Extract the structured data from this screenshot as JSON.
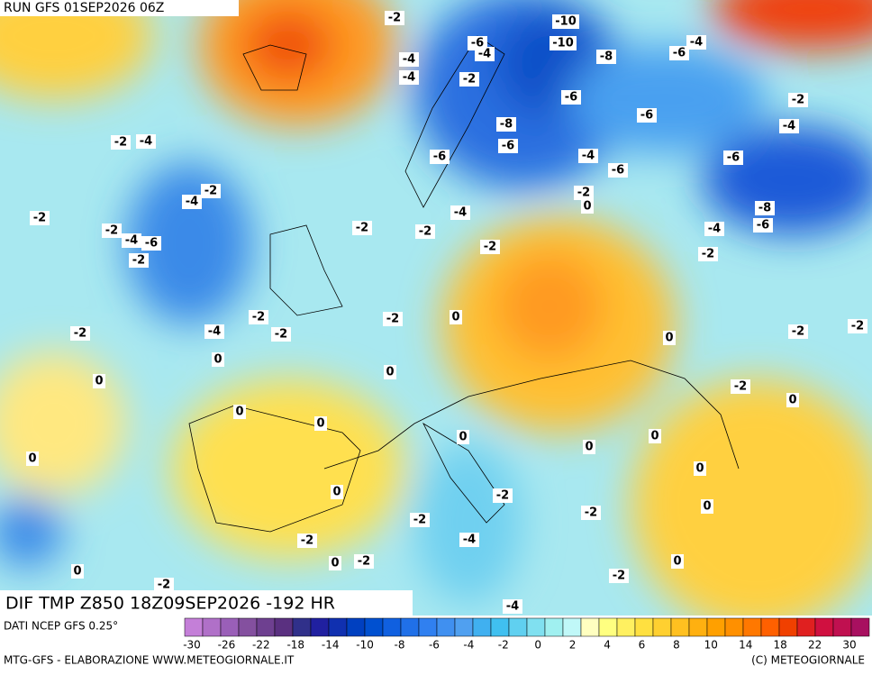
{
  "header": {
    "run": "RUN GFS 01SEP2026 06Z"
  },
  "map": {
    "title": "DIF TMP Z850 18Z09SEP2026 -192 HR",
    "contour_labels": [
      "-2",
      "-10",
      "-10",
      "-6",
      "-4",
      "-4",
      "-6",
      "-8",
      "-4",
      "-4",
      "-2",
      "-6",
      "-2",
      "-6",
      "-8",
      "-4",
      "-2",
      "-4",
      "-6",
      "-4",
      "-6",
      "-6",
      "-6",
      "-2",
      "-4",
      "-2",
      "0",
      "-8",
      "-4",
      "-2",
      "-2",
      "-2",
      "-4",
      "-6",
      "-2",
      "-4",
      "-6",
      "-2",
      "-2",
      "-2",
      "-2",
      "-2",
      "0",
      "-4",
      "-2",
      "-2",
      "-2",
      "-2",
      "0",
      "0",
      "0",
      "0",
      "-2",
      "0",
      "0",
      "0",
      "0",
      "0",
      "0",
      "0",
      "0",
      "0",
      "-2",
      "0",
      "-2",
      "-2",
      "-2",
      "-4",
      "-2",
      "0",
      "0",
      "0",
      "-2",
      "-2",
      "-4"
    ]
  },
  "colorbar": {
    "source": "DATI NCEP GFS 0.25°",
    "colors": [
      "#c47fd8",
      "#b070c8",
      "#9a5fb8",
      "#84509f",
      "#6e4090",
      "#5a3080",
      "#30308a",
      "#2020a0",
      "#1030b0",
      "#0040c0",
      "#0050d0",
      "#1060e0",
      "#2070e8",
      "#3080f0",
      "#4090f0",
      "#50a0f0",
      "#40b0f0",
      "#40c0f0",
      "#60d0f0",
      "#80e0f0",
      "#a0f0f0",
      "#c0f8f8",
      "#ffffc0",
      "#ffff80",
      "#fff060",
      "#ffe040",
      "#ffd030",
      "#ffc020",
      "#ffb010",
      "#ffa000",
      "#ff9000",
      "#ff7800",
      "#ff6000",
      "#f04000",
      "#e02020",
      "#d01040",
      "#c01050",
      "#a81060"
    ],
    "ticks": [
      -30,
      -26,
      -22,
      -18,
      -14,
      -10,
      -8,
      -6,
      -4,
      -2,
      0,
      2,
      4,
      6,
      8,
      10,
      14,
      18,
      22,
      30
    ]
  },
  "footer": {
    "left": "MTG-GFS - ELABORAZIONE WWW.METEOGIORNALE.IT",
    "right": "(C) METEOGIORNALE"
  }
}
